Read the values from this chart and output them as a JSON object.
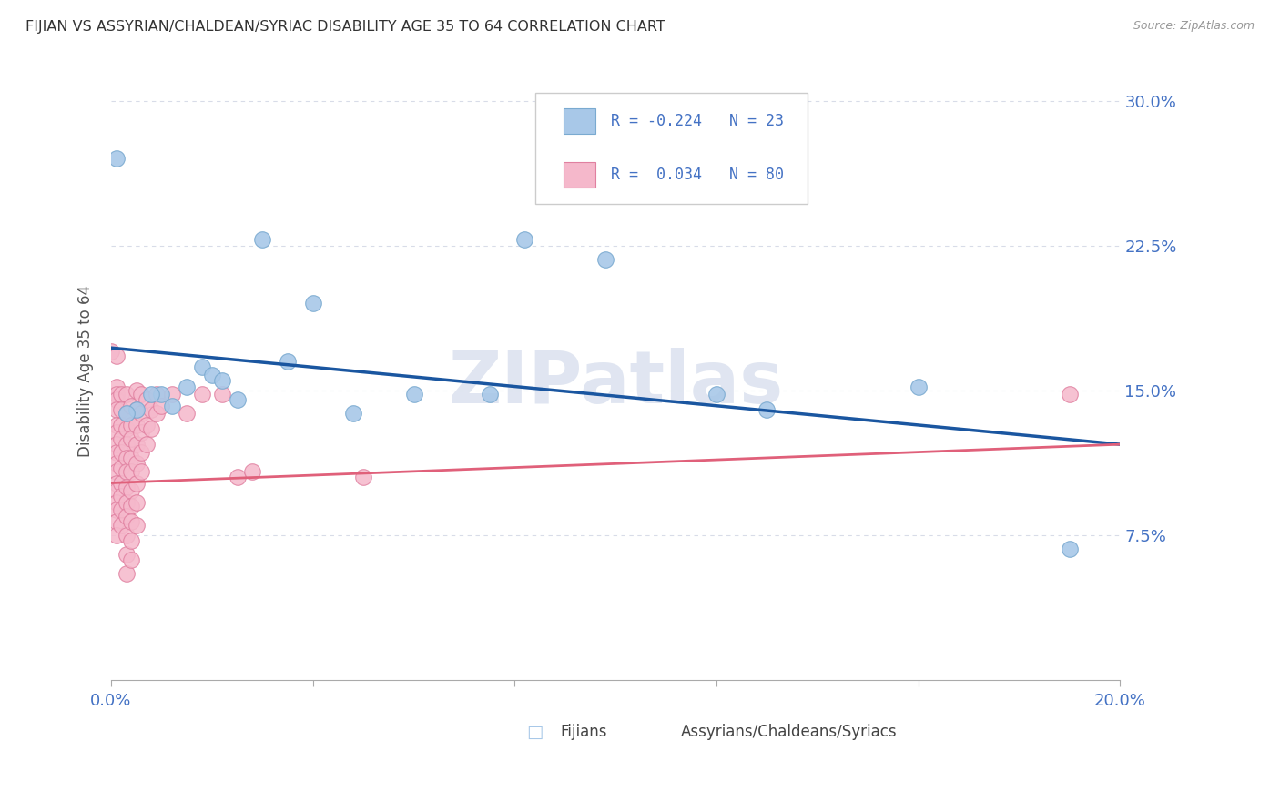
{
  "title": "FIJIAN VS ASSYRIAN/CHALDEAN/SYRIAC DISABILITY AGE 35 TO 64 CORRELATION CHART",
  "source": "Source: ZipAtlas.com",
  "ylabel": "Disability Age 35 to 64",
  "yticks": [
    0.075,
    0.15,
    0.225,
    0.3
  ],
  "ytick_labels": [
    "7.5%",
    "15.0%",
    "22.5%",
    "30.0%"
  ],
  "xlim": [
    0.0,
    0.2
  ],
  "ylim": [
    0.0,
    0.32
  ],
  "fijian_color": "#a8c8e8",
  "fijian_edge": "#7aaad0",
  "assyrian_color": "#f5b8cb",
  "assyrian_edge": "#e080a0",
  "fijian_line_color": "#1a56a0",
  "assyrian_line_color": "#e0607a",
  "watermark": "ZIPatlas",
  "background_color": "#ffffff",
  "grid_color": "#d8dce8",
  "fijian_points": [
    [
      0.001,
      0.27
    ],
    [
      0.03,
      0.228
    ],
    [
      0.04,
      0.195
    ],
    [
      0.035,
      0.165
    ],
    [
      0.018,
      0.162
    ],
    [
      0.02,
      0.158
    ],
    [
      0.022,
      0.155
    ],
    [
      0.015,
      0.152
    ],
    [
      0.01,
      0.148
    ],
    [
      0.008,
      0.148
    ],
    [
      0.025,
      0.145
    ],
    [
      0.012,
      0.142
    ],
    [
      0.005,
      0.14
    ],
    [
      0.003,
      0.138
    ],
    [
      0.048,
      0.138
    ],
    [
      0.06,
      0.148
    ],
    [
      0.075,
      0.148
    ],
    [
      0.082,
      0.228
    ],
    [
      0.098,
      0.218
    ],
    [
      0.12,
      0.148
    ],
    [
      0.13,
      0.14
    ],
    [
      0.16,
      0.152
    ],
    [
      0.19,
      0.068
    ]
  ],
  "assyrian_points": [
    [
      0.0,
      0.17
    ],
    [
      0.001,
      0.168
    ],
    [
      0.001,
      0.152
    ],
    [
      0.001,
      0.148
    ],
    [
      0.001,
      0.145
    ],
    [
      0.001,
      0.14
    ],
    [
      0.001,
      0.132
    ],
    [
      0.001,
      0.128
    ],
    [
      0.001,
      0.122
    ],
    [
      0.001,
      0.118
    ],
    [
      0.001,
      0.112
    ],
    [
      0.001,
      0.108
    ],
    [
      0.001,
      0.102
    ],
    [
      0.001,
      0.098
    ],
    [
      0.001,
      0.092
    ],
    [
      0.001,
      0.088
    ],
    [
      0.001,
      0.082
    ],
    [
      0.001,
      0.075
    ],
    [
      0.002,
      0.148
    ],
    [
      0.002,
      0.14
    ],
    [
      0.002,
      0.132
    ],
    [
      0.002,
      0.125
    ],
    [
      0.002,
      0.118
    ],
    [
      0.002,
      0.11
    ],
    [
      0.002,
      0.102
    ],
    [
      0.002,
      0.095
    ],
    [
      0.002,
      0.088
    ],
    [
      0.002,
      0.08
    ],
    [
      0.003,
      0.148
    ],
    [
      0.003,
      0.138
    ],
    [
      0.003,
      0.13
    ],
    [
      0.003,
      0.122
    ],
    [
      0.003,
      0.115
    ],
    [
      0.003,
      0.108
    ],
    [
      0.003,
      0.1
    ],
    [
      0.003,
      0.092
    ],
    [
      0.003,
      0.085
    ],
    [
      0.003,
      0.075
    ],
    [
      0.003,
      0.065
    ],
    [
      0.003,
      0.055
    ],
    [
      0.004,
      0.142
    ],
    [
      0.004,
      0.132
    ],
    [
      0.004,
      0.125
    ],
    [
      0.004,
      0.115
    ],
    [
      0.004,
      0.108
    ],
    [
      0.004,
      0.098
    ],
    [
      0.004,
      0.09
    ],
    [
      0.004,
      0.082
    ],
    [
      0.004,
      0.072
    ],
    [
      0.004,
      0.062
    ],
    [
      0.005,
      0.15
    ],
    [
      0.005,
      0.14
    ],
    [
      0.005,
      0.132
    ],
    [
      0.005,
      0.122
    ],
    [
      0.005,
      0.112
    ],
    [
      0.005,
      0.102
    ],
    [
      0.005,
      0.092
    ],
    [
      0.005,
      0.08
    ],
    [
      0.006,
      0.148
    ],
    [
      0.006,
      0.138
    ],
    [
      0.006,
      0.128
    ],
    [
      0.006,
      0.118
    ],
    [
      0.006,
      0.108
    ],
    [
      0.007,
      0.145
    ],
    [
      0.007,
      0.132
    ],
    [
      0.007,
      0.122
    ],
    [
      0.008,
      0.14
    ],
    [
      0.008,
      0.13
    ],
    [
      0.009,
      0.148
    ],
    [
      0.009,
      0.138
    ],
    [
      0.01,
      0.142
    ],
    [
      0.012,
      0.148
    ],
    [
      0.015,
      0.138
    ],
    [
      0.018,
      0.148
    ],
    [
      0.022,
      0.148
    ],
    [
      0.025,
      0.105
    ],
    [
      0.028,
      0.108
    ],
    [
      0.05,
      0.105
    ],
    [
      0.19,
      0.148
    ]
  ]
}
